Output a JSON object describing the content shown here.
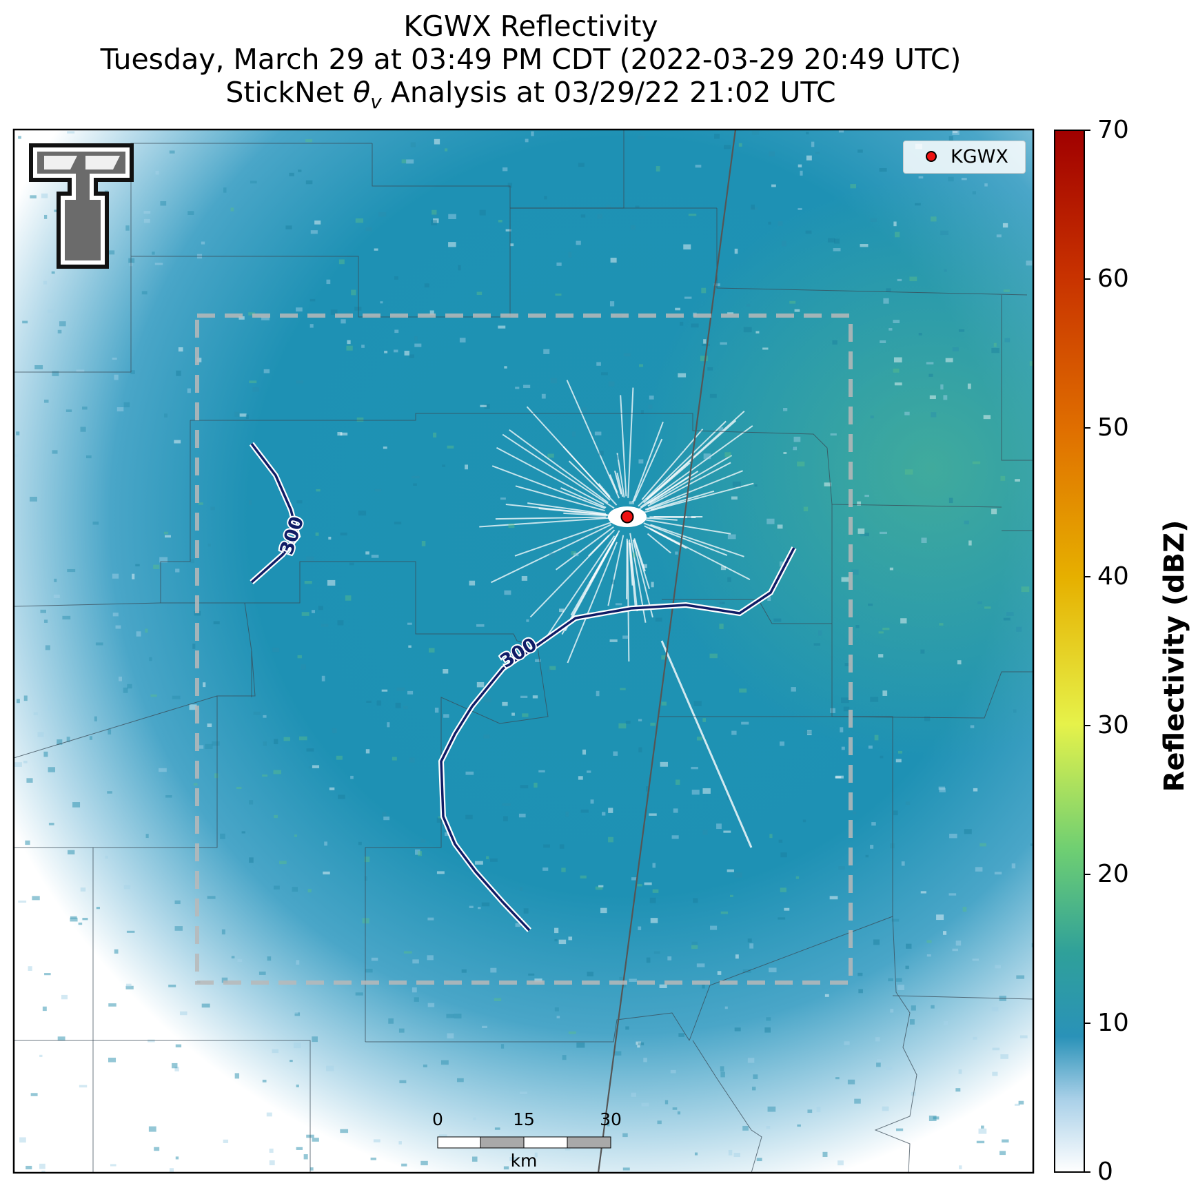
{
  "title": {
    "line1": "KGWX Reflectivity",
    "line2": "Tuesday, March 29 at 03:49 PM CDT (2022-03-29 20:49 UTC)",
    "line3_prefix": "StickNet ",
    "line3_theta": "θ",
    "line3_sub": "v",
    "line3_suffix": " Analysis at 03/29/22 21:02 UTC"
  },
  "legend": {
    "label": "KGWX"
  },
  "colorbar": {
    "label": "Reflectivity (dBZ)",
    "ticks": [
      "70",
      "60",
      "50",
      "40",
      "30",
      "20",
      "10",
      "0"
    ],
    "range": [
      0,
      70
    ],
    "stops": [
      {
        "value": 0,
        "color": "#ffffff"
      },
      {
        "value": 5,
        "color": "#a9d0e8"
      },
      {
        "value": 9,
        "color": "#2a92b8"
      },
      {
        "value": 15,
        "color": "#2fa09a"
      },
      {
        "value": 22,
        "color": "#6fcf72"
      },
      {
        "value": 30,
        "color": "#e6f24a"
      },
      {
        "value": 40,
        "color": "#e6b000"
      },
      {
        "value": 50,
        "color": "#e07000"
      },
      {
        "value": 60,
        "color": "#c83200"
      },
      {
        "value": 70,
        "color": "#a00000"
      }
    ]
  },
  "contour_labels": [
    "300",
    "300"
  ],
  "scale_bar": {
    "ticks": [
      "0",
      "15",
      "30"
    ],
    "unit": "km"
  },
  "colors": {
    "echo_base": "#1e92b3",
    "echo_light": "#a7d3e8",
    "echo_green": "#5cbf8a",
    "contour": "#0f1c66",
    "radar_marker": "#ee1111",
    "analysis_box": "#b8b8b8"
  },
  "logo": {
    "name": "Texas Tech double-T logo",
    "text": "TT"
  }
}
